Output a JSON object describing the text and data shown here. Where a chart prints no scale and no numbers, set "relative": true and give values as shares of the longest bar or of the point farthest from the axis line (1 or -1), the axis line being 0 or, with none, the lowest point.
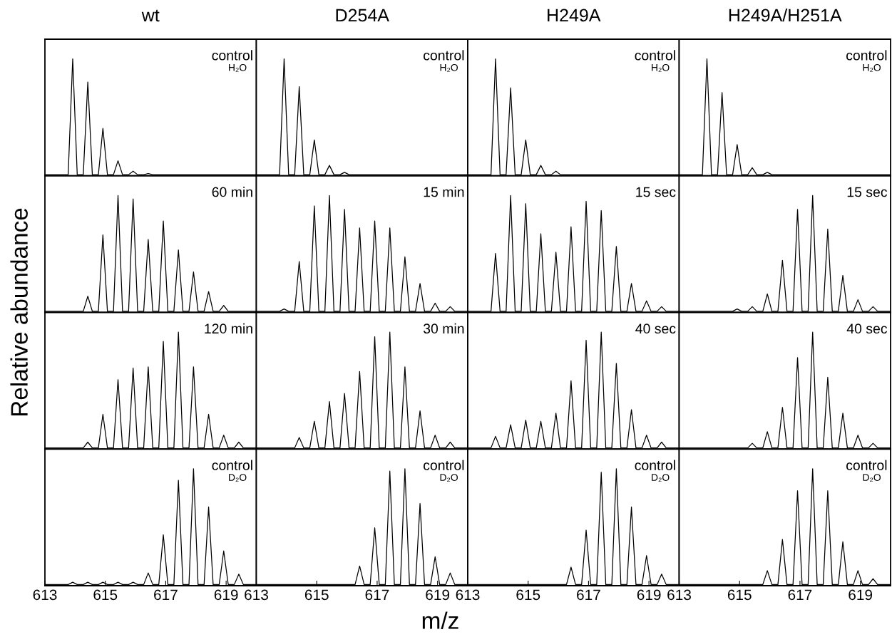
{
  "chart_data": [
    {
      "type": "line",
      "title": "wt",
      "relative": true,
      "color": "#000000",
      "ylabel": "Relative abundance",
      "annotations": [
        "control",
        "H₂O"
      ],
      "xlim": [
        613,
        620
      ],
      "tick_labels": false,
      "x": [
        613,
        613.77,
        613.92,
        614.07,
        614.27,
        614.42,
        614.57,
        614.77,
        614.92,
        615.07,
        615.27,
        615.42,
        615.57,
        615.77,
        615.92,
        616.07,
        616.27,
        616.42,
        616.57,
        620
      ],
      "values": [
        0,
        0,
        1,
        0,
        0,
        0.8,
        0,
        0,
        0.4,
        0,
        0,
        0.12,
        0,
        0,
        0.03,
        0,
        0,
        0.01,
        0,
        0
      ]
    },
    {
      "type": "line",
      "title": "D254A",
      "relative": true,
      "color": "#000000",
      "annotations": [
        "control",
        "H₂O"
      ],
      "xlim": [
        613,
        620
      ],
      "tick_labels": false,
      "x": [
        613,
        613.77,
        613.92,
        614.07,
        614.27,
        614.42,
        614.57,
        614.77,
        614.92,
        615.07,
        615.27,
        615.42,
        615.57,
        615.77,
        615.92,
        616.07,
        620
      ],
      "values": [
        0,
        0,
        1,
        0,
        0,
        0.76,
        0,
        0,
        0.3,
        0,
        0,
        0.08,
        0,
        0,
        0.02,
        0,
        0
      ]
    },
    {
      "type": "line",
      "title": "H249A",
      "relative": true,
      "color": "#000000",
      "annotations": [
        "control",
        "H₂O"
      ],
      "xlim": [
        613,
        620
      ],
      "tick_labels": false,
      "x": [
        613,
        613.77,
        613.92,
        614.07,
        614.27,
        614.42,
        614.57,
        614.77,
        614.92,
        615.07,
        615.27,
        615.42,
        615.57,
        615.77,
        615.92,
        616.07,
        620
      ],
      "values": [
        0,
        0,
        1,
        0,
        0,
        0.75,
        0,
        0,
        0.3,
        0,
        0,
        0.08,
        0,
        0,
        0.03,
        0,
        0
      ]
    },
    {
      "type": "line",
      "title": "H249A/H251A",
      "relative": true,
      "color": "#000000",
      "annotations": [
        "control",
        "H₂O"
      ],
      "xlim": [
        613,
        620
      ],
      "tick_labels": false,
      "x": [
        613,
        613.77,
        613.92,
        614.07,
        614.27,
        614.42,
        614.57,
        614.77,
        614.92,
        615.07,
        615.27,
        615.42,
        615.57,
        615.77,
        615.92,
        616.07,
        620
      ],
      "values": [
        0,
        0,
        1,
        0,
        0,
        0.71,
        0,
        0,
        0.26,
        0,
        0,
        0.06,
        0,
        0,
        0.02,
        0,
        0
      ]
    },
    {
      "type": "line",
      "relative": true,
      "color": "#000000",
      "annotations": [
        "60 min"
      ],
      "xlim": [
        613,
        620
      ],
      "tick_labels": false,
      "x": [
        613,
        614.27,
        614.42,
        614.57,
        614.77,
        614.92,
        615.07,
        615.27,
        615.42,
        615.57,
        615.77,
        615.92,
        616.07,
        616.27,
        616.42,
        616.57,
        616.77,
        616.92,
        617.07,
        617.27,
        617.42,
        617.57,
        617.77,
        617.92,
        618.07,
        618.27,
        618.42,
        618.57,
        618.77,
        618.92,
        619.07,
        620
      ],
      "values": [
        0,
        0,
        0.13,
        0,
        0,
        0.66,
        0,
        0,
        1,
        0,
        0,
        0.97,
        0,
        0,
        0.62,
        0,
        0,
        0.78,
        0,
        0,
        0.53,
        0,
        0,
        0.34,
        0,
        0,
        0.17,
        0,
        0,
        0.05,
        0,
        0
      ]
    },
    {
      "type": "line",
      "relative": true,
      "color": "#000000",
      "annotations": [
        "15 min"
      ],
      "xlim": [
        613,
        620
      ],
      "tick_labels": false,
      "x": [
        613,
        613.77,
        613.92,
        614.07,
        614.27,
        614.42,
        614.57,
        614.77,
        614.92,
        615.07,
        615.27,
        615.42,
        615.57,
        615.77,
        615.92,
        616.07,
        616.27,
        616.42,
        616.57,
        616.77,
        616.92,
        617.07,
        617.27,
        617.42,
        617.57,
        617.77,
        617.92,
        618.07,
        618.27,
        618.42,
        618.57,
        618.77,
        618.92,
        619.07,
        619.27,
        619.42,
        619.57,
        620
      ],
      "values": [
        0,
        0,
        0.02,
        0,
        0,
        0.43,
        0,
        0,
        0.91,
        0,
        0,
        1,
        0,
        0,
        0.88,
        0,
        0,
        0.72,
        0,
        0,
        0.78,
        0,
        0,
        0.72,
        0,
        0,
        0.47,
        0,
        0,
        0.24,
        0,
        0,
        0.07,
        0,
        0,
        0.04,
        0,
        0
      ]
    },
    {
      "type": "line",
      "relative": true,
      "color": "#000000",
      "annotations": [
        "15 sec"
      ],
      "xlim": [
        613,
        620
      ],
      "tick_labels": false,
      "x": [
        613,
        613.77,
        613.92,
        614.07,
        614.27,
        614.42,
        614.57,
        614.77,
        614.92,
        615.07,
        615.27,
        615.42,
        615.57,
        615.77,
        615.92,
        616.07,
        616.27,
        616.42,
        616.57,
        616.77,
        616.92,
        617.07,
        617.27,
        617.42,
        617.57,
        617.77,
        617.92,
        618.07,
        618.27,
        618.42,
        618.57,
        618.77,
        618.92,
        619.07,
        619.27,
        619.42,
        619.57,
        620
      ],
      "values": [
        0,
        0,
        0.5,
        0,
        0,
        1,
        0,
        0,
        0.93,
        0,
        0,
        0.67,
        0,
        0,
        0.51,
        0,
        0,
        0.73,
        0,
        0,
        0.95,
        0,
        0,
        0.87,
        0,
        0,
        0.56,
        0,
        0,
        0.24,
        0,
        0,
        0.09,
        0,
        0,
        0.04,
        0,
        0
      ]
    },
    {
      "type": "line",
      "relative": true,
      "color": "#000000",
      "annotations": [
        "15 sec"
      ],
      "xlim": [
        613,
        620
      ],
      "tick_labels": false,
      "x": [
        613,
        614.77,
        614.92,
        615.07,
        615.27,
        615.42,
        615.57,
        615.77,
        615.92,
        616.07,
        616.27,
        616.42,
        616.57,
        616.77,
        616.92,
        617.07,
        617.27,
        617.42,
        617.57,
        617.77,
        617.92,
        618.07,
        618.27,
        618.42,
        618.57,
        618.77,
        618.92,
        619.07,
        619.27,
        619.42,
        619.57,
        620
      ],
      "values": [
        0,
        0,
        0.02,
        0,
        0,
        0.04,
        0,
        0,
        0.15,
        0,
        0,
        0.44,
        0,
        0,
        0.88,
        0,
        0,
        1,
        0,
        0,
        0.71,
        0,
        0,
        0.31,
        0,
        0,
        0.1,
        0,
        0,
        0.04,
        0,
        0
      ]
    },
    {
      "type": "line",
      "relative": true,
      "color": "#000000",
      "annotations": [
        "120 min"
      ],
      "xlim": [
        613,
        620
      ],
      "tick_labels": false,
      "x": [
        613,
        614.27,
        614.42,
        614.57,
        614.77,
        614.92,
        615.07,
        615.27,
        615.42,
        615.57,
        615.77,
        615.92,
        616.07,
        616.27,
        616.42,
        616.57,
        616.77,
        616.92,
        617.07,
        617.27,
        617.42,
        617.57,
        617.77,
        617.92,
        618.07,
        618.27,
        618.42,
        618.57,
        618.77,
        618.92,
        619.07,
        619.27,
        619.42,
        619.57,
        620
      ],
      "values": [
        0,
        0,
        0.05,
        0,
        0,
        0.29,
        0,
        0,
        0.59,
        0,
        0,
        0.69,
        0,
        0,
        0.7,
        0,
        0,
        0.92,
        0,
        0,
        1,
        0,
        0,
        0.7,
        0,
        0,
        0.29,
        0,
        0,
        0.11,
        0,
        0,
        0.05,
        0,
        0
      ]
    },
    {
      "type": "line",
      "relative": true,
      "color": "#000000",
      "annotations": [
        "30 min"
      ],
      "xlim": [
        613,
        620
      ],
      "tick_labels": false,
      "x": [
        613,
        614.27,
        614.42,
        614.57,
        614.77,
        614.92,
        615.07,
        615.27,
        615.42,
        615.57,
        615.77,
        615.92,
        616.07,
        616.27,
        616.42,
        616.57,
        616.77,
        616.92,
        617.07,
        617.27,
        617.42,
        617.57,
        617.77,
        617.92,
        618.07,
        618.27,
        618.42,
        618.57,
        618.77,
        618.92,
        619.07,
        619.27,
        619.42,
        619.57,
        620
      ],
      "values": [
        0,
        0,
        0.09,
        0,
        0,
        0.23,
        0,
        0,
        0.4,
        0,
        0,
        0.47,
        0,
        0,
        0.66,
        0,
        0,
        0.96,
        0,
        0,
        1,
        0,
        0,
        0.7,
        0,
        0,
        0.32,
        0,
        0,
        0.11,
        0,
        0,
        0.05,
        0,
        0
      ]
    },
    {
      "type": "line",
      "relative": true,
      "color": "#000000",
      "annotations": [
        "40 sec"
      ],
      "xlim": [
        613,
        620
      ],
      "tick_labels": false,
      "x": [
        613,
        613.77,
        613.92,
        614.07,
        614.27,
        614.42,
        614.57,
        614.77,
        614.92,
        615.07,
        615.27,
        615.42,
        615.57,
        615.77,
        615.92,
        616.07,
        616.27,
        616.42,
        616.57,
        616.77,
        616.92,
        617.07,
        617.27,
        617.42,
        617.57,
        617.77,
        617.92,
        618.07,
        618.27,
        618.42,
        618.57,
        618.77,
        618.92,
        619.07,
        619.27,
        619.42,
        619.57,
        620
      ],
      "values": [
        0,
        0,
        0.1,
        0,
        0,
        0.2,
        0,
        0,
        0.24,
        0,
        0,
        0.23,
        0,
        0,
        0.3,
        0,
        0,
        0.58,
        0,
        0,
        0.93,
        0,
        0,
        1,
        0,
        0,
        0.73,
        0,
        0,
        0.33,
        0,
        0,
        0.11,
        0,
        0,
        0.05,
        0,
        0
      ]
    },
    {
      "type": "line",
      "relative": true,
      "color": "#000000",
      "annotations": [
        "40 sec"
      ],
      "xlim": [
        613,
        620
      ],
      "tick_labels": false,
      "x": [
        613,
        615.27,
        615.42,
        615.57,
        615.77,
        615.92,
        616.07,
        616.27,
        616.42,
        616.57,
        616.77,
        616.92,
        617.07,
        617.27,
        617.42,
        617.57,
        617.77,
        617.92,
        618.07,
        618.27,
        618.42,
        618.57,
        618.77,
        618.92,
        619.07,
        619.27,
        619.42,
        619.57,
        620
      ],
      "values": [
        0,
        0,
        0.04,
        0,
        0,
        0.14,
        0,
        0,
        0.35,
        0,
        0,
        0.78,
        0,
        0,
        1,
        0,
        0,
        0.61,
        0,
        0,
        0.3,
        0,
        0,
        0.11,
        0,
        0,
        0.04,
        0,
        0
      ]
    },
    {
      "type": "line",
      "relative": true,
      "color": "#000000",
      "annotations": [
        "control",
        "D₂O"
      ],
      "xlim": [
        613,
        620
      ],
      "xticks": [
        613,
        615,
        617,
        619
      ],
      "tick_labels": "x",
      "x": [
        613,
        613.77,
        613.92,
        614.07,
        614.27,
        614.42,
        614.57,
        614.77,
        614.92,
        615.07,
        615.27,
        615.42,
        615.57,
        615.77,
        615.92,
        616.07,
        616.27,
        616.42,
        616.57,
        616.77,
        616.92,
        617.07,
        617.27,
        617.42,
        617.57,
        617.77,
        617.92,
        618.07,
        618.27,
        618.42,
        618.57,
        618.77,
        618.92,
        619.07,
        619.27,
        619.42,
        619.57,
        620
      ],
      "values": [
        0,
        0,
        0.02,
        0,
        0,
        0.02,
        0,
        0,
        0.02,
        0,
        0,
        0.02,
        0,
        0,
        0.02,
        0,
        0,
        0.1,
        0,
        0,
        0.43,
        0,
        0,
        0.9,
        0,
        0,
        1,
        0,
        0,
        0.67,
        0,
        0,
        0.29,
        0,
        0,
        0.09,
        0,
        0
      ]
    },
    {
      "type": "line",
      "relative": true,
      "color": "#000000",
      "xlabel": "m/z",
      "annotations": [
        "control",
        "D₂O"
      ],
      "xlim": [
        613,
        620
      ],
      "xticks": [
        613,
        615,
        617,
        619
      ],
      "tick_labels": "x",
      "x": [
        613,
        616.27,
        616.42,
        616.57,
        616.77,
        616.92,
        617.07,
        617.27,
        617.42,
        617.57,
        617.77,
        617.92,
        618.07,
        618.27,
        618.42,
        618.57,
        618.77,
        618.92,
        619.07,
        619.27,
        619.42,
        619.57,
        620
      ],
      "values": [
        0,
        0,
        0.16,
        0,
        0,
        0.49,
        0,
        0,
        0.98,
        0,
        0,
        1,
        0,
        0,
        0.7,
        0,
        0,
        0.24,
        0,
        0,
        0.1,
        0,
        0
      ]
    },
    {
      "type": "line",
      "relative": true,
      "color": "#000000",
      "annotations": [
        "control",
        "D₂O"
      ],
      "xlim": [
        613,
        620
      ],
      "xticks": [
        613,
        615,
        617,
        619
      ],
      "tick_labels": "x",
      "x": [
        613,
        616.27,
        616.42,
        616.57,
        616.77,
        616.92,
        617.07,
        617.27,
        617.42,
        617.57,
        617.77,
        617.92,
        618.07,
        618.27,
        618.42,
        618.57,
        618.77,
        618.92,
        619.07,
        619.27,
        619.42,
        619.57,
        620
      ],
      "values": [
        0,
        0,
        0.15,
        0,
        0,
        0.47,
        0,
        0,
        0.97,
        0,
        0,
        1,
        0,
        0,
        0.67,
        0,
        0,
        0.25,
        0,
        0,
        0.09,
        0,
        0
      ]
    },
    {
      "type": "line",
      "relative": true,
      "color": "#000000",
      "annotations": [
        "control",
        "D₂O"
      ],
      "xlim": [
        613,
        620
      ],
      "xticks": [
        613,
        615,
        617,
        619
      ],
      "tick_labels": "x",
      "x": [
        613,
        615.77,
        615.92,
        616.07,
        616.27,
        616.42,
        616.57,
        616.77,
        616.92,
        617.07,
        617.27,
        617.42,
        617.57,
        617.77,
        617.92,
        618.07,
        618.27,
        618.42,
        618.57,
        618.77,
        618.92,
        619.07,
        619.27,
        619.42,
        619.57,
        620
      ],
      "values": [
        0,
        0,
        0.12,
        0,
        0,
        0.39,
        0,
        0,
        0.81,
        0,
        0,
        1,
        0,
        0,
        0.81,
        0,
        0,
        0.37,
        0,
        0,
        0.12,
        0,
        0,
        0.05,
        0,
        0
      ]
    }
  ]
}
